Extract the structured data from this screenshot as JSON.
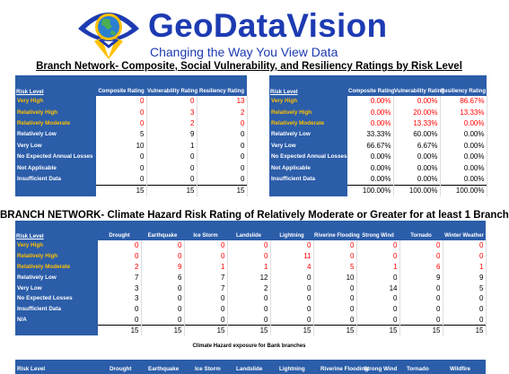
{
  "brand": {
    "name": "GeoDataVision",
    "tagline": "Changing the Way You View Data"
  },
  "title1": "Branch Network- Composite, Social Vulnerability, and Resiliency Ratings by Risk Level",
  "table1": {
    "headers": [
      "Risk Level",
      "Composite Rating",
      "Vulnerability Rating",
      "Resiliency Rating"
    ],
    "rows": [
      {
        "label": "Very High",
        "values": [
          "0",
          "0",
          "13"
        ]
      },
      {
        "label": "Relatively High",
        "values": [
          "0",
          "3",
          "2"
        ]
      },
      {
        "label": "Relatively Moderate",
        "values": [
          "0",
          "2",
          "0"
        ]
      },
      {
        "label": "Relatively Low",
        "values": [
          "5",
          "9",
          "0"
        ]
      },
      {
        "label": "Very Low",
        "values": [
          "10",
          "1",
          "0"
        ]
      },
      {
        "label": "No Expected Annual Losses",
        "values": [
          "0",
          "0",
          "0"
        ]
      },
      {
        "label": "Not Applicable",
        "values": [
          "0",
          "0",
          "0"
        ]
      },
      {
        "label": "Insufficient Data",
        "values": [
          "0",
          "0",
          "0"
        ]
      }
    ],
    "totals": [
      "15",
      "15",
      "15"
    ]
  },
  "table2": {
    "headers": [
      "Risk Level",
      "Composite Rating",
      "Vulnerability Rating",
      "Resiliency Rating"
    ],
    "rows": [
      {
        "label": "Very High",
        "values": [
          "0.00%",
          "0.00%",
          "86.67%"
        ]
      },
      {
        "label": "Relatively High",
        "values": [
          "0.00%",
          "20.00%",
          "13.33%"
        ]
      },
      {
        "label": "Relatively Moderate",
        "values": [
          "0.00%",
          "13.33%",
          "0.00%"
        ]
      },
      {
        "label": "Relatively Low",
        "values": [
          "33.33%",
          "60.00%",
          "0.00%"
        ]
      },
      {
        "label": "Very Low",
        "values": [
          "66.67%",
          "6.67%",
          "0.00%"
        ]
      },
      {
        "label": "No Expected Annual Losses",
        "values": [
          "0.00%",
          "0.00%",
          "0.00%"
        ]
      },
      {
        "label": "Not Applicable",
        "values": [
          "0.00%",
          "0.00%",
          "0.00%"
        ]
      },
      {
        "label": "Insufficient Data",
        "values": [
          "0.00%",
          "0.00%",
          "0.00%"
        ]
      }
    ],
    "totals": [
      "100.00%",
      "100.00%",
      "100.00%"
    ]
  },
  "title2": "BRANCH NETWORK- Climate Hazard Risk Rating of Relatively Moderate or Greater for at least 1 Branch",
  "table3": {
    "headers": [
      "Risk Level",
      "Drought",
      "Earthquake",
      "Ice Storm",
      "Landslide",
      "Lightning",
      "Riverine Flooding",
      "Strong Wind",
      "Tornado",
      "Winter Weather"
    ],
    "rows": [
      {
        "label": "Very High",
        "values": [
          "0",
          "0",
          "0",
          "0",
          "0",
          "0",
          "0",
          "0",
          "0"
        ]
      },
      {
        "label": "Relatively High",
        "values": [
          "0",
          "0",
          "0",
          "0",
          "11",
          "0",
          "0",
          "0",
          "0"
        ]
      },
      {
        "label": "Relatively Moderate",
        "values": [
          "2",
          "9",
          "1",
          "1",
          "4",
          "5",
          "1",
          "6",
          "1"
        ]
      },
      {
        "label": "Relatively Low",
        "values": [
          "7",
          "6",
          "7",
          "12",
          "0",
          "10",
          "0",
          "9",
          "9"
        ]
      },
      {
        "label": "Very Low",
        "values": [
          "3",
          "0",
          "7",
          "2",
          "0",
          "0",
          "14",
          "0",
          "5"
        ]
      },
      {
        "label": "No Expected Losses",
        "values": [
          "3",
          "0",
          "0",
          "0",
          "0",
          "0",
          "0",
          "0",
          "0"
        ]
      },
      {
        "label": "Insufficient Data",
        "values": [
          "0",
          "0",
          "0",
          "0",
          "0",
          "0",
          "0",
          "0",
          "0"
        ]
      },
      {
        "label": "N/A",
        "values": [
          "0",
          "0",
          "0",
          "0",
          "0",
          "0",
          "0",
          "0",
          "0"
        ]
      }
    ],
    "totals": [
      "15",
      "15",
      "15",
      "15",
      "15",
      "15",
      "15",
      "15",
      "15"
    ]
  },
  "caption": "Climate Hazard exposure for Bank branches",
  "bottom_headers": [
    "Risk Level",
    "Drought",
    "Earthquake",
    "Ice Storm",
    "Landslide",
    "Lightning",
    "Riverine Flooding",
    "Strong Wind",
    "Tornado",
    "Wildfire"
  ],
  "colors": {
    "header_blue": "#2b5da9",
    "brand_blue": "#1d3bb2",
    "gold": "#ffc000",
    "alert_red": "#ff0000"
  }
}
